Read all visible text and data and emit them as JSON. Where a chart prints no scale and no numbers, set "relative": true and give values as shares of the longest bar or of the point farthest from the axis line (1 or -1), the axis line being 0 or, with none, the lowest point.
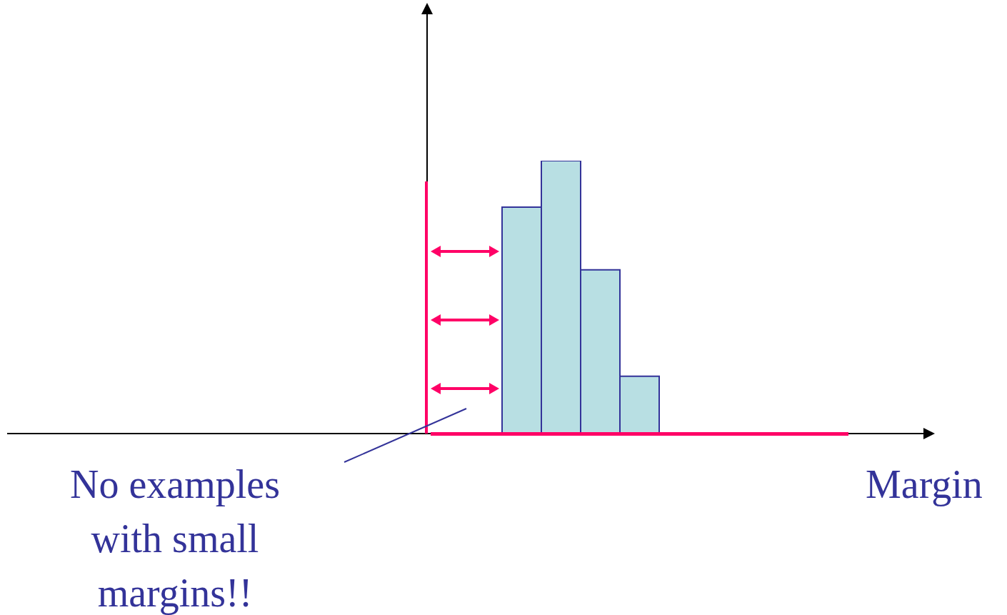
{
  "chart_data": {
    "type": "bar",
    "relative": true,
    "annotations": [
      "No examples with small margins!!",
      "Margin"
    ],
    "color": "#b8dfe3",
    "categories": [
      null,
      null,
      null,
      null
    ],
    "values": [
      0.83,
      1,
      0.6,
      0.21
    ]
  }
}
